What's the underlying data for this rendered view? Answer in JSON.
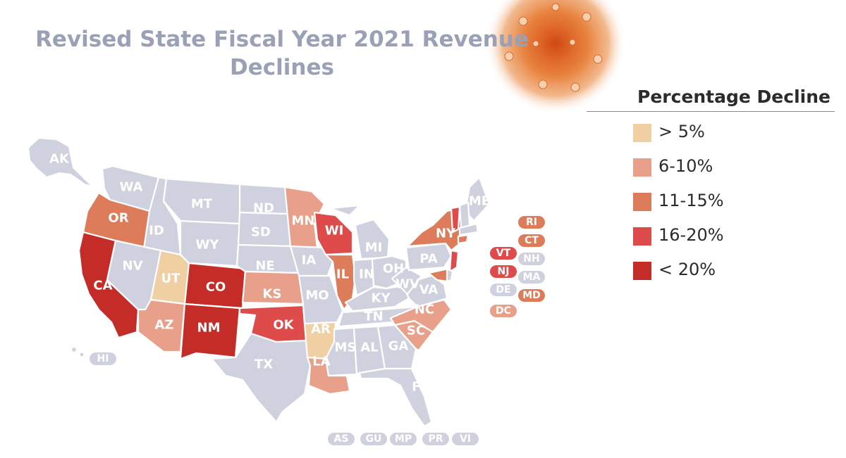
{
  "title": {
    "line1": "Revised State Fiscal Year 2021 Revenue",
    "line2": "Declines"
  },
  "colors": {
    "none": "#cfd1de",
    "c5": "#f0cfa3",
    "c6_10": "#e8a08a",
    "c11_15": "#dc7c5b",
    "c16_20": "#dd4b4b",
    "c20": "#c42d27"
  },
  "legend": {
    "title": "Percentage Decline",
    "items": [
      {
        "label": "> 5%",
        "color": "#f0cfa3"
      },
      {
        "label": "6-10%",
        "color": "#e8a08a"
      },
      {
        "label": "11-15%",
        "color": "#dc7c5b"
      },
      {
        "label": "16-20%",
        "color": "#dd4b4b"
      },
      {
        "label": "< 20%",
        "color": "#c42d27"
      }
    ]
  },
  "states": {
    "AK": "none",
    "HI": "none",
    "WA": "none",
    "OR": "11-15%",
    "CA": "< 20%",
    "ID": "none",
    "NV": "none",
    "UT": "> 5%",
    "AZ": "6-10%",
    "MT": "none",
    "WY": "none",
    "CO": "< 20%",
    "NM": "< 20%",
    "ND": "none",
    "SD": "none",
    "NE": "none",
    "KS": "6-10%",
    "OK": "16-20%",
    "TX": "none",
    "MN": "6-10%",
    "IA": "none",
    "MO": "none",
    "AR": "> 5%",
    "LA": "6-10%",
    "WI": "16-20%",
    "IL": "11-15%",
    "MI": "none",
    "IN": "none",
    "OH": "none",
    "KY": "none",
    "TN": "none",
    "MS": "none",
    "AL": "none",
    "GA": "none",
    "FL": "none",
    "SC": "6-10%",
    "NC": "6-10%",
    "VA": "none",
    "WV": "none",
    "PA": "none",
    "NY": "11-15%",
    "ME": "none"
  },
  "side_pills": [
    {
      "code": "RI",
      "bin": "11-15%"
    },
    {
      "code": "CT",
      "bin": "11-15%"
    },
    {
      "code": "VT",
      "bin": "16-20%"
    },
    {
      "code": "NH",
      "bin": "none"
    },
    {
      "code": "NJ",
      "bin": "16-20%"
    },
    {
      "code": "MA",
      "bin": "none"
    },
    {
      "code": "DE",
      "bin": "none"
    },
    {
      "code": "MD",
      "bin": "11-15%"
    },
    {
      "code": "DC",
      "bin": "6-10%"
    }
  ],
  "territories": [
    {
      "code": "AS",
      "bin": "none"
    },
    {
      "code": "GU",
      "bin": "none"
    },
    {
      "code": "MP",
      "bin": "none"
    },
    {
      "code": "PR",
      "bin": "none"
    },
    {
      "code": "VI",
      "bin": "none"
    }
  ]
}
